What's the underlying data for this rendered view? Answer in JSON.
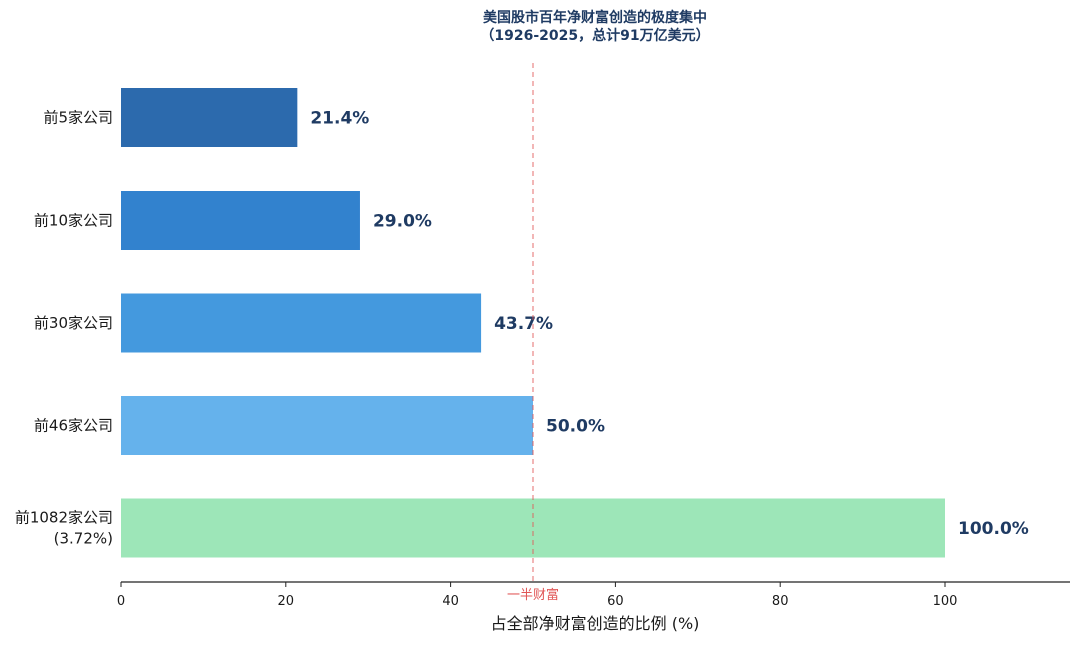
{
  "chart_data": {
    "type": "bar",
    "orientation": "horizontal",
    "title": "美国股市百年净财富创造的极度集中",
    "subtitle": "（1926-2025，总计91万亿美元）",
    "categories": [
      [
        "前5家公司"
      ],
      [
        "前10家公司"
      ],
      [
        "前30家公司"
      ],
      [
        "前46家公司"
      ],
      [
        "前1082家公司",
        "(3.72%)"
      ]
    ],
    "values": [
      21.4,
      29.0,
      43.7,
      50.0,
      100.0
    ],
    "value_labels": [
      "21.4%",
      "29.0%",
      "43.7%",
      "50.0%",
      "100.0%"
    ],
    "colors": [
      "#2c6aad",
      "#3282ce",
      "#4499de",
      "#65b2ec",
      "#9de6b8"
    ],
    "xlabel": "占全部净财富创造的比例 (%)",
    "xlim": [
      0,
      115
    ],
    "xticks": [
      0,
      20,
      40,
      60,
      80,
      100
    ],
    "reference_line": {
      "x": 50,
      "label": "一半财富",
      "color": "#e05555"
    },
    "grid": false
  }
}
